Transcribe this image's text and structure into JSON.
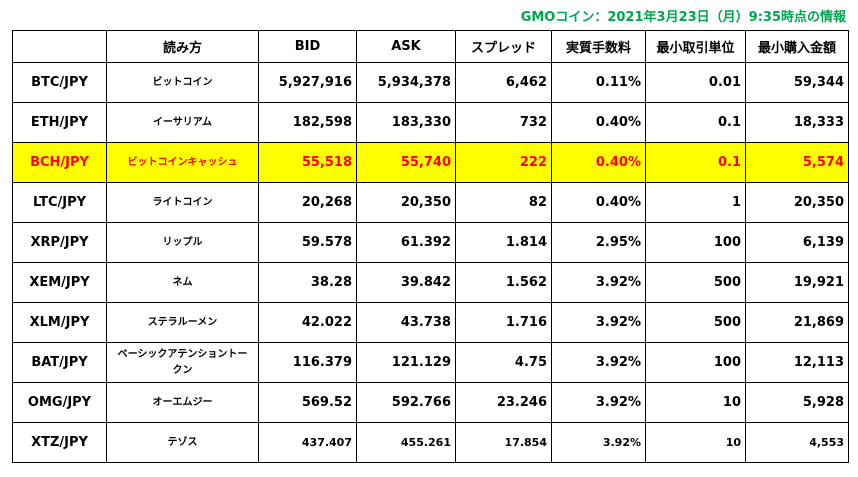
{
  "caption": "GMOコイン：2021年3月23日（月）9:35時点の情報",
  "table": {
    "header": [
      "",
      "読み方",
      "BID",
      "ASK",
      "スプレッド",
      "実質手数料",
      "最小取引単位",
      "最小購入金額"
    ],
    "rows": [
      [
        "BTC/JPY",
        "ビットコイン",
        "5,927,916",
        "5,934,378",
        "6,462",
        "0.11%",
        "0.01",
        "59,344"
      ],
      [
        "ETH/JPY",
        "イーサリアム",
        "182,598",
        "183,330",
        "732",
        "0.40%",
        "0.1",
        "18,333"
      ],
      [
        "BCH/JPY",
        "ビットコインキャッシュ",
        "55,518",
        "55,740",
        "222",
        "0.40%",
        "0.1",
        "5,574"
      ],
      [
        "LTC/JPY",
        "ライトコイン",
        "20,268",
        "20,350",
        "82",
        "0.40%",
        "1",
        "20,350"
      ],
      [
        "XRP/JPY",
        "リップル",
        "59.578",
        "61.392",
        "1.814",
        "2.95%",
        "100",
        "6,139"
      ],
      [
        "XEM/JPY",
        "ネム",
        "38.28",
        "39.842",
        "1.562",
        "3.92%",
        "500",
        "19,921"
      ],
      [
        "XLM/JPY",
        "ステラルーメン",
        "42.022",
        "43.738",
        "1.716",
        "3.92%",
        "500",
        "21,869"
      ],
      [
        "BAT/JPY",
        "ベーシックアテンショントークン",
        "116.379",
        "121.129",
        "4.75",
        "3.92%",
        "100",
        "12,113"
      ],
      [
        "OMG/JPY",
        "オーエムジー",
        "569.52",
        "592.766",
        "23.246",
        "3.92%",
        "10",
        "5,928"
      ],
      [
        "XTZ/JPY",
        "テゾス",
        "437.407",
        "455.261",
        "17.854",
        "3.92%",
        "10",
        "4,553"
      ]
    ]
  }
}
